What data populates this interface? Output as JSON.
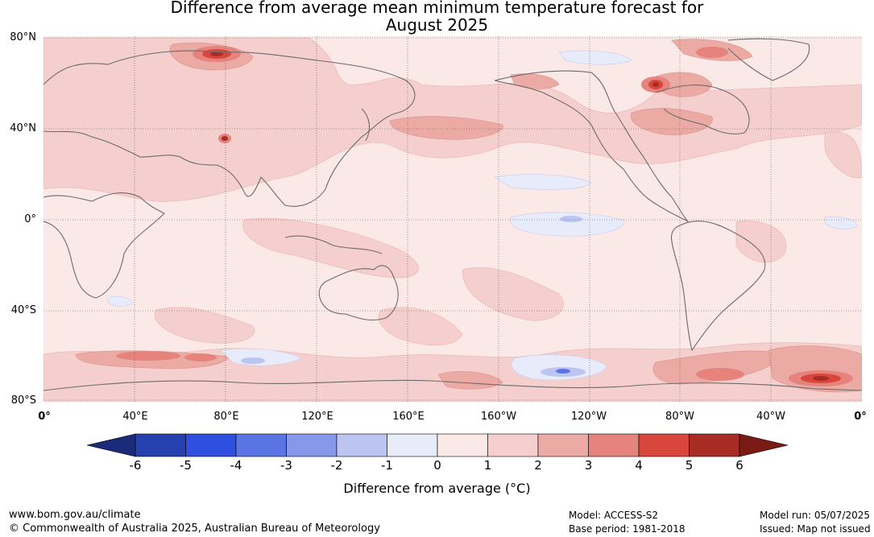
{
  "title_line1": "Difference from average mean minimum temperature forecast for",
  "title_line2": "August 2025",
  "lat_labels": [
    "80°N",
    "40°N",
    "0°",
    "40°S",
    "80°S"
  ],
  "lon_labels": [
    "0°",
    "40°E",
    "80°E",
    "120°E",
    "160°E",
    "160°W",
    "120°W",
    "80°W",
    "40°W",
    "0°"
  ],
  "colorbar": {
    "label": "Difference from average (°C)",
    "ticks": [
      "-6",
      "-5",
      "-4",
      "-3",
      "-2",
      "-1",
      "0",
      "1",
      "2",
      "3",
      "4",
      "5",
      "6"
    ],
    "under_color": "#1c2a7a",
    "over_color": "#7a1a14",
    "colors": [
      "#2640b0",
      "#2f4fe0",
      "#5a74e4",
      "#8797ea",
      "#bcc5f2",
      "#e8ebfa",
      "#fbe9e7",
      "#f5cfcd",
      "#ecaaa5",
      "#e5837c",
      "#d8463c",
      "#a92c24"
    ]
  },
  "footer": {
    "website": "www.bom.gov.au/climate",
    "copyright": "© Commonwealth of Australia 2025, Australian Bureau of Meteorology",
    "model": "Model: ACCESS-S2",
    "base_period": "Base period: 1981-2018",
    "model_run": "Model run: 05/07/2025",
    "issued": "Issued: Map not issued"
  }
}
